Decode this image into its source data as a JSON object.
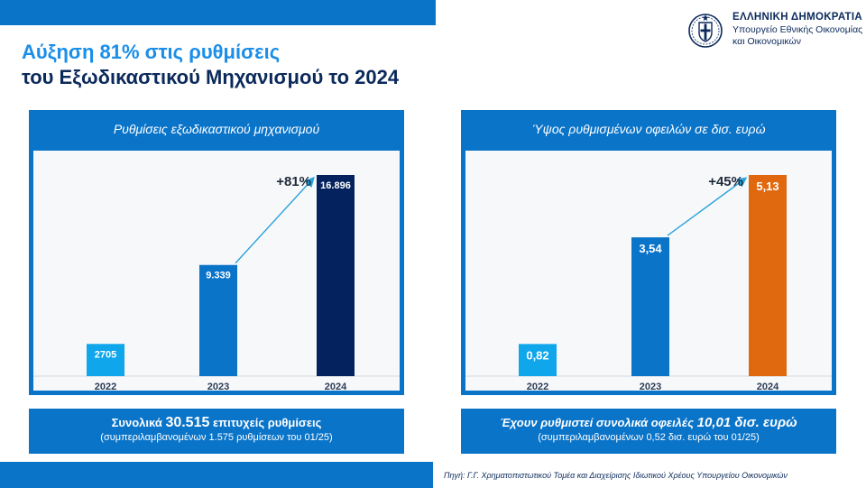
{
  "header": {
    "title_line1": "Αύξηση 81% στις ρυθμίσεις",
    "title_line2": "του Εξωδικαστικού Μηχανισμού το 2024"
  },
  "brand": {
    "country": "ΕΛΛΗΝΙΚΗ ΔΗΜΟΚΡΑΤΙΑ",
    "ministry_line1": "Υπουργείο Εθνικής Οικονομίας",
    "ministry_line2": "και Οικονομικών",
    "emblem_icon": "greek-coat-of-arms-icon"
  },
  "colors": {
    "brand_blue": "#0a74c9",
    "navy": "#0b2a5b",
    "light_bar": "#0fa6ec",
    "mid_bar": "#0a74c9",
    "dark_bar": "#04235e",
    "orange_bar": "#e0680f",
    "arrow": "#2aa3dc"
  },
  "chart_data": [
    {
      "type": "bar",
      "title": "Ρυθμίσεις εξωδικαστικού μηχανισμού",
      "categories": [
        "2022",
        "2023",
        "2024"
      ],
      "values": [
        2705,
        9339,
        16896
      ],
      "value_labels": [
        "2705",
        "9.339",
        "16.896"
      ],
      "growth_label": "+81%",
      "ylim": [
        0,
        16896
      ],
      "grid": false,
      "summary": {
        "lead": "Συνολικά ",
        "highlight": "30.515",
        "tail": " επιτυχείς ρυθμίσεις",
        "note": "(συμπεριλαμβανομένων 1.575 ρυθμίσεων του 01/25)"
      }
    },
    {
      "type": "bar",
      "title": "Ύψος ρυθμισμένων οφειλών σε δισ. ευρώ",
      "categories": [
        "2022",
        "2023",
        "2024"
      ],
      "values": [
        0.82,
        3.54,
        5.13
      ],
      "value_labels": [
        "0,82",
        "3,54",
        "5,13"
      ],
      "growth_label": "+45%",
      "ylim": [
        0,
        5.13
      ],
      "grid": false,
      "summary": {
        "lead": "Έχουν ρυθμιστεί συνολικά οφειλές ",
        "highlight": "10,01 δισ. ευρώ",
        "tail": "",
        "note": "(συμπεριλαμβανομένων 0,52 δισ. ευρώ του 01/25)"
      }
    }
  ],
  "footer": {
    "source": "Πηγή: Γ.Γ. Χρηματοπιστωτικού Τομέα και Διαχείρισης Ιδιωτικού Χρέους Υπουργείου Οικονομικών"
  }
}
